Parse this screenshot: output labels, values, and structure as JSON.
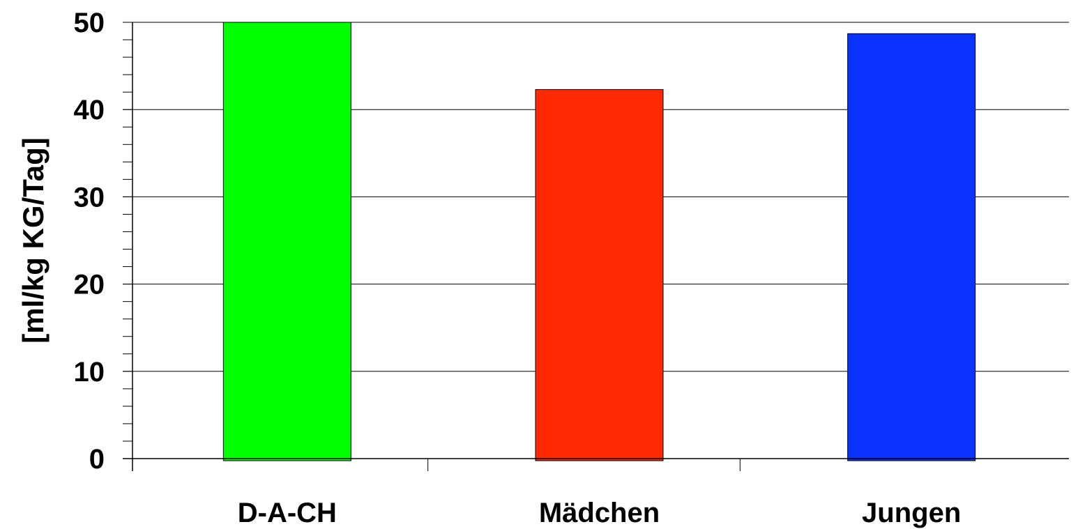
{
  "chart_data": {
    "type": "bar",
    "categories": [
      "D-A-CH",
      "Mädchen",
      "Jungen"
    ],
    "values": [
      50,
      42.3,
      48.7
    ],
    "colors": [
      "#00ff00",
      "#ff2a00",
      "#0c32ff"
    ],
    "title": "",
    "xlabel": "",
    "ylabel": "[ml/kg KG/Tag]",
    "ylim": [
      0,
      50
    ],
    "yticks": [
      0,
      10,
      20,
      30,
      40,
      50
    ],
    "minor_tick_step": 2,
    "grid": true,
    "legend": "none"
  }
}
